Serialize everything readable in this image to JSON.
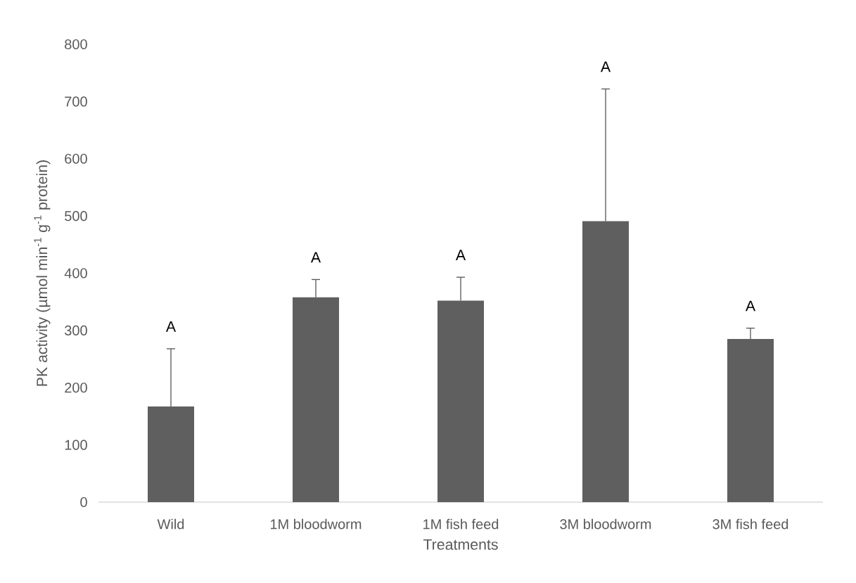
{
  "chart_data": {
    "type": "bar",
    "xlabel": "Treatments",
    "ylabel": "PK activity  (µmol min$^{-1}$ g$^{-1}$ protein)",
    "categories": [
      "Wild",
      "1M bloodworm",
      "1M fish feed",
      "3M bloodworm",
      "3M fish feed"
    ],
    "values": [
      167,
      358,
      352,
      491,
      285
    ],
    "errors": [
      [
        167,
        268
      ],
      [
        358,
        389
      ],
      [
        352,
        393
      ],
      [
        491,
        722
      ],
      [
        285,
        304
      ]
    ],
    "color": "#5f5f5f",
    "ylim": [
      0,
      800
    ],
    "yticks": [
      0,
      100,
      200,
      300,
      400,
      500,
      600,
      700,
      800
    ],
    "annotations": [
      "A",
      "A",
      "A",
      "A",
      "A"
    ]
  }
}
